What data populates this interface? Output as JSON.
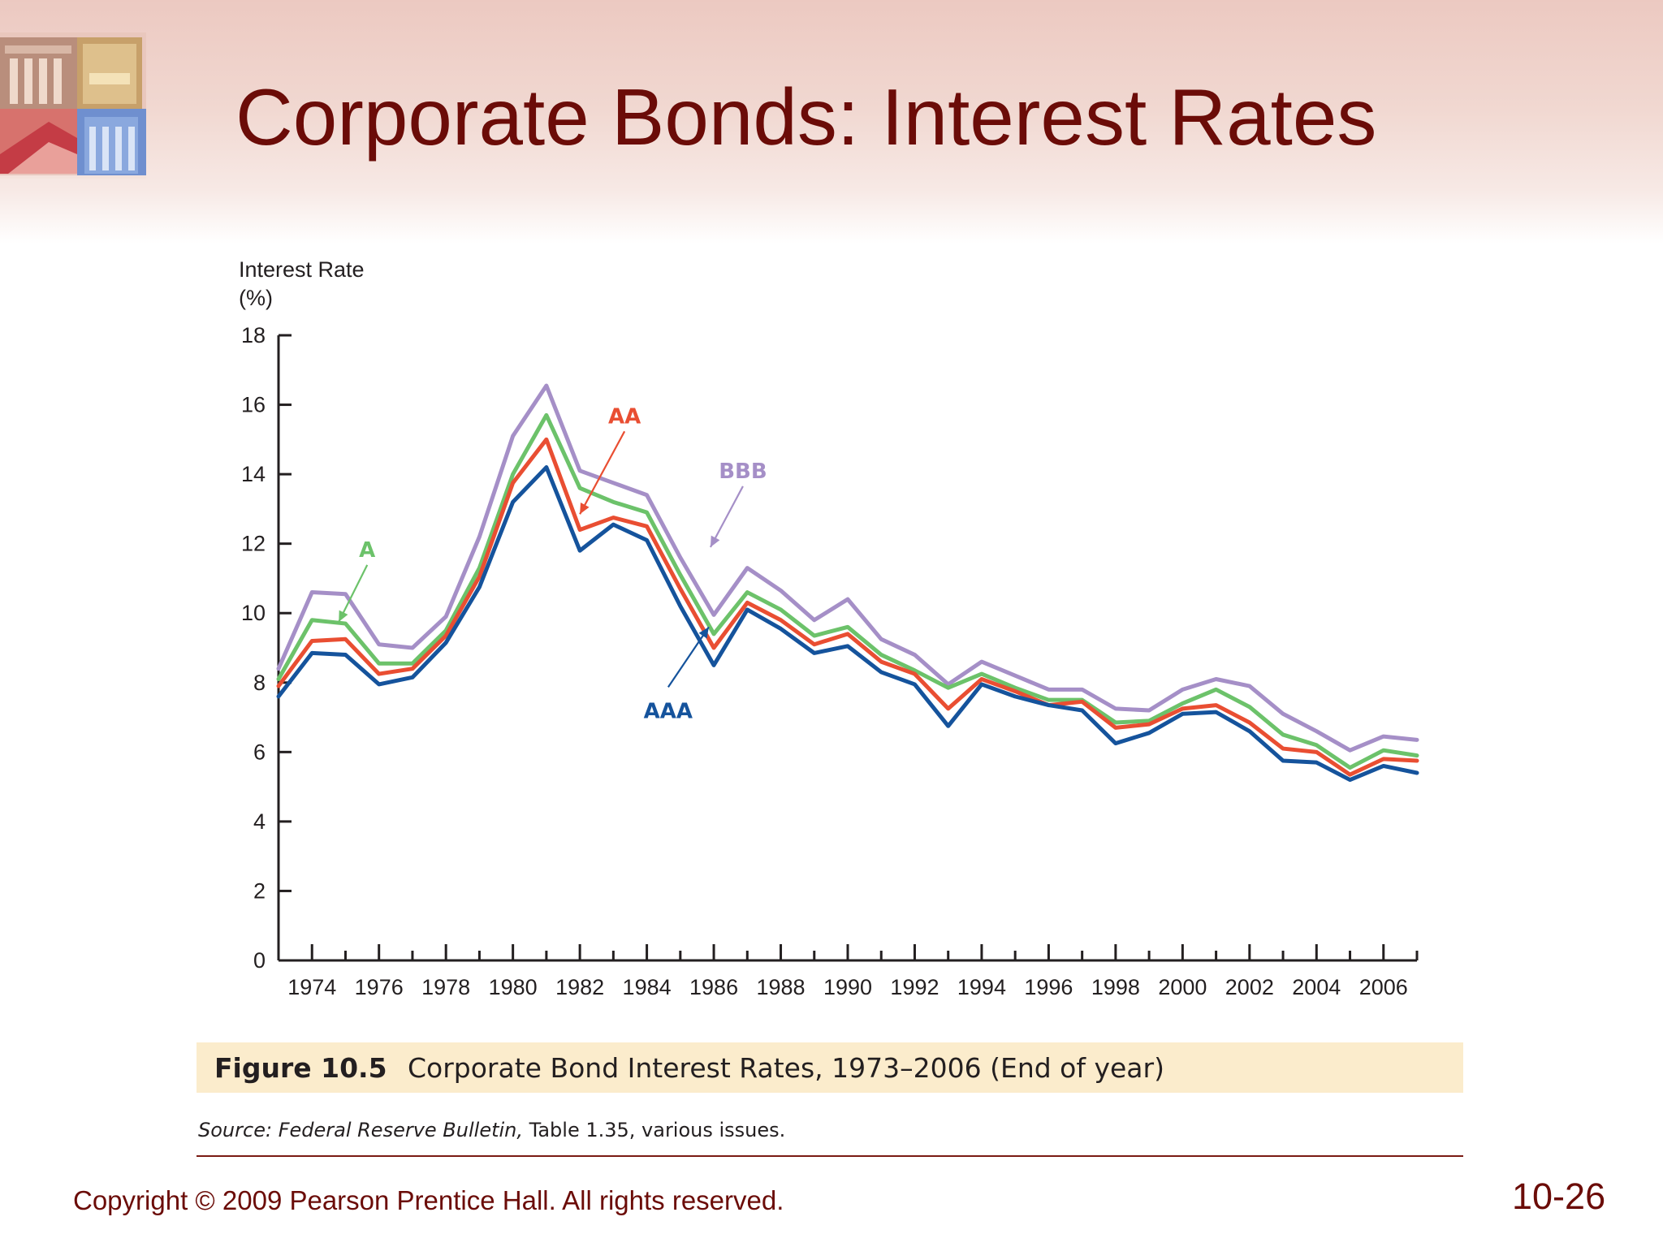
{
  "slide": {
    "title": "Corporate Bonds: Interest Rates",
    "copyright": "Copyright © 2009 Pearson Prentice Hall. All rights reserved.",
    "slide_number": "10-26"
  },
  "caption": {
    "figure_label": "Figure 10.5",
    "figure_text": "Corporate Bond Interest Rates, 1973–2006 (End of year)"
  },
  "source": {
    "prefix": "Source:",
    "publication": "Federal Reserve Bulletin,",
    "rest": "Table 1.35, various issues."
  },
  "chart_data": {
    "type": "line",
    "ylabel_line1": "Interest Rate",
    "ylabel_line2": "(%)",
    "xlabel": "",
    "ylim": [
      0,
      18
    ],
    "yticks": [
      0,
      2,
      4,
      6,
      8,
      10,
      12,
      14,
      16,
      18
    ],
    "xlim": [
      1973,
      2007
    ],
    "xtick_labels": [
      "1974",
      "1976",
      "1978",
      "1980",
      "1982",
      "1984",
      "1986",
      "1988",
      "1990",
      "1992",
      "1994",
      "1996",
      "1998",
      "2000",
      "2002",
      "2004",
      "2006"
    ],
    "x": [
      1973,
      1974,
      1975,
      1976,
      1977,
      1978,
      1979,
      1980,
      1981,
      1982,
      1983,
      1984,
      1985,
      1986,
      1987,
      1988,
      1989,
      1990,
      1991,
      1992,
      1993,
      1994,
      1995,
      1996,
      1997,
      1998,
      1999,
      2000,
      2001,
      2002,
      2003,
      2004,
      2005,
      2006,
      2007
    ],
    "series": [
      {
        "name": "BBB",
        "color": "#a58fc7",
        "values": [
          8.4,
          10.6,
          10.55,
          9.1,
          9.0,
          9.9,
          12.2,
          15.1,
          16.55,
          14.1,
          13.75,
          13.4,
          11.6,
          9.95,
          11.3,
          10.65,
          9.8,
          10.4,
          9.25,
          8.8,
          7.95,
          8.6,
          8.2,
          7.8,
          7.8,
          7.25,
          7.2,
          7.8,
          8.1,
          7.9,
          7.1,
          6.6,
          6.05,
          6.45,
          6.35
        ]
      },
      {
        "name": "A",
        "color": "#6cc26a",
        "values": [
          8.1,
          9.8,
          9.7,
          8.55,
          8.55,
          9.5,
          11.3,
          14.0,
          15.7,
          13.6,
          13.2,
          12.9,
          11.1,
          9.4,
          10.6,
          10.1,
          9.35,
          9.6,
          8.8,
          8.35,
          7.85,
          8.25,
          7.85,
          7.5,
          7.5,
          6.85,
          6.9,
          7.4,
          7.8,
          7.3,
          6.5,
          6.2,
          5.55,
          6.05,
          5.9
        ]
      },
      {
        "name": "AA",
        "color": "#e94e32",
        "values": [
          7.9,
          9.2,
          9.25,
          8.25,
          8.4,
          9.35,
          11.05,
          13.75,
          15.0,
          12.4,
          12.75,
          12.5,
          10.7,
          9.0,
          10.3,
          9.8,
          9.1,
          9.4,
          8.6,
          8.25,
          7.25,
          8.1,
          7.75,
          7.35,
          7.45,
          6.7,
          6.8,
          7.25,
          7.35,
          6.85,
          6.1,
          6.0,
          5.35,
          5.8,
          5.75
        ]
      },
      {
        "name": "AAA",
        "color": "#15539c",
        "values": [
          7.6,
          8.85,
          8.8,
          7.95,
          8.15,
          9.15,
          10.75,
          13.2,
          14.2,
          11.8,
          12.55,
          12.1,
          10.2,
          8.5,
          10.1,
          9.55,
          8.85,
          9.05,
          8.3,
          7.95,
          6.75,
          7.95,
          7.6,
          7.35,
          7.2,
          6.25,
          6.55,
          7.1,
          7.15,
          6.6,
          5.75,
          5.7,
          5.2,
          5.6,
          5.4
        ]
      }
    ],
    "annotations": [
      {
        "label": "AA",
        "series": "AA",
        "color": "#e94e32",
        "x": 1982,
        "y": 12.85
      },
      {
        "label": "BBB",
        "series": "BBB",
        "color": "#a58fc7",
        "x": 1985.9,
        "y": 11.9
      },
      {
        "label": "A",
        "series": "A",
        "color": "#6cc26a",
        "x": 1974.8,
        "y": 9.75
      },
      {
        "label": "AAA",
        "series": "AAA",
        "color": "#15539c",
        "x": 1985.85,
        "y": 9.6
      }
    ]
  }
}
